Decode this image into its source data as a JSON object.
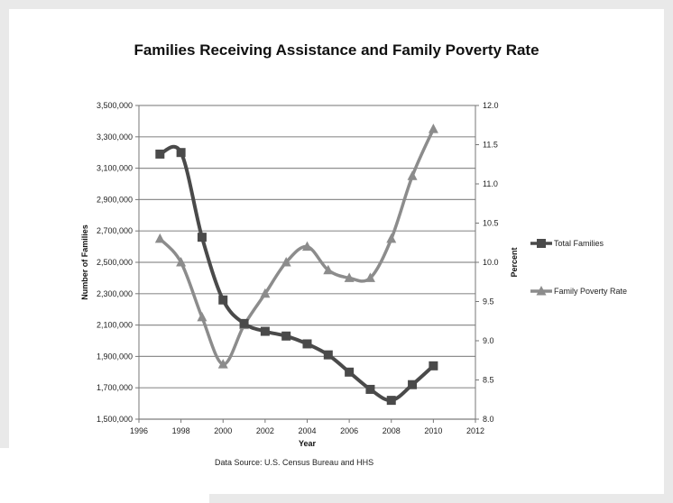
{
  "chart_data": {
    "type": "line",
    "title": "Families Receiving Assistance and Family Poverty Rate",
    "xlabel": "Year",
    "ylabel": "Number of Families",
    "y2label": "Percent",
    "xlim": [
      1996,
      2012
    ],
    "ylim": [
      1500000,
      3500000
    ],
    "y2lim": [
      8.0,
      12.0
    ],
    "x_ticks": [
      "1996",
      "1998",
      "2000",
      "2002",
      "2004",
      "2006",
      "2008",
      "2010",
      "2012"
    ],
    "y_ticks": [
      "1,500,000",
      "1,700,000",
      "1,900,000",
      "2,100,000",
      "2,300,000",
      "2,500,000",
      "2,700,000",
      "2,900,000",
      "3,100,000",
      "3,300,000",
      "3,500,000"
    ],
    "y2_ticks": [
      "8.0",
      "8.5",
      "9.0",
      "9.5",
      "10.0",
      "10.5",
      "11.0",
      "11.5",
      "12.0"
    ],
    "grid": true,
    "legend_position": "right",
    "series": [
      {
        "name": "Total Families",
        "axis": "left",
        "marker": "square",
        "color": "#4a4a4a",
        "x": [
          1997,
          1998,
          1999,
          2000,
          2001,
          2002,
          2003,
          2004,
          2005,
          2006,
          2007,
          2008,
          2009,
          2010
        ],
        "values": [
          3190000,
          3200000,
          2660000,
          2260000,
          2110000,
          2060000,
          2030000,
          1980000,
          1910000,
          1800000,
          1690000,
          1620000,
          1720000,
          1840000
        ]
      },
      {
        "name": "Family Poverty Rate",
        "axis": "right",
        "marker": "triangle",
        "color": "#8c8c8c",
        "x": [
          1997,
          1998,
          1999,
          2000,
          2001,
          2002,
          2003,
          2004,
          2005,
          2006,
          2007,
          2008,
          2009,
          2010
        ],
        "values": [
          10.3,
          10.0,
          9.3,
          8.7,
          9.2,
          9.6,
          10.0,
          10.2,
          9.9,
          9.8,
          9.8,
          10.3,
          11.1,
          11.7
        ]
      }
    ]
  },
  "source_note": "Data Source: U.S. Census Bureau and HHS"
}
